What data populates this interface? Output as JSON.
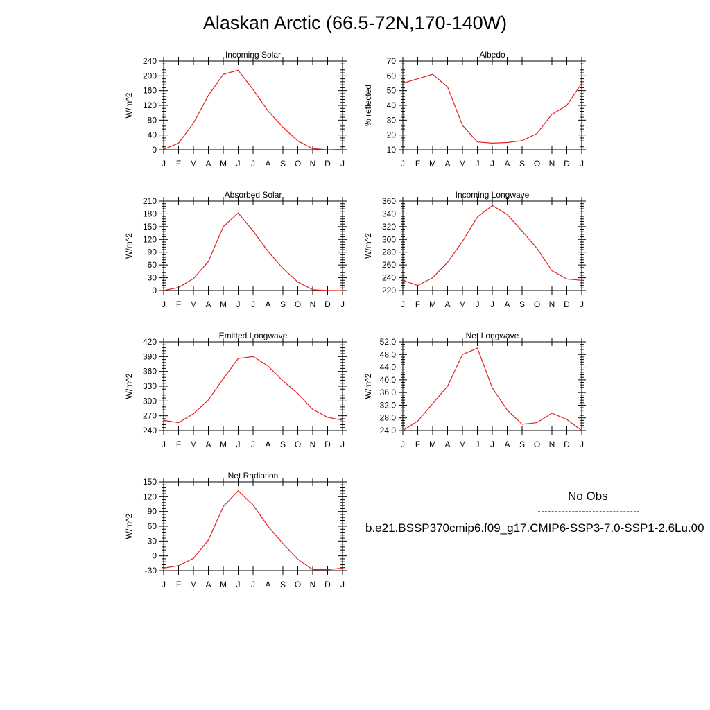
{
  "title": "Alaskan Arctic (66.5-72N,170-140W)",
  "legend": {
    "obs_label": "No Obs",
    "model_label": "b.e21.BSSP370cmip6.f09_g17.CMIP6-SSP3-7.0-SSP1-2.6Lu.00",
    "model_color": "#e02020",
    "obs_color": "#6a6adf"
  },
  "chart_data": [
    {
      "type": "line",
      "title": "Incoming Solar",
      "ylabel": "W/m^2",
      "categories": [
        "J",
        "F",
        "M",
        "A",
        "M",
        "J",
        "J",
        "A",
        "S",
        "O",
        "N",
        "D",
        "J"
      ],
      "ylim": [
        0,
        240
      ],
      "yticks": [
        "0",
        "40",
        "80",
        "120",
        "160",
        "200",
        "240"
      ],
      "values": [
        1,
        18,
        72,
        147,
        204,
        215,
        163,
        105,
        61,
        24,
        3,
        0,
        1
      ]
    },
    {
      "type": "line",
      "title": "Albedo",
      "ylabel": "% reflected",
      "categories": [
        "J",
        "F",
        "M",
        "A",
        "M",
        "J",
        "J",
        "A",
        "S",
        "O",
        "N",
        "D",
        "J"
      ],
      "ylim": [
        10,
        70
      ],
      "yticks": [
        "10",
        "20",
        "30",
        "40",
        "50",
        "60",
        "70"
      ],
      "values": [
        55,
        58,
        61,
        52.5,
        26.5,
        15.3,
        14.5,
        14.9,
        16.2,
        21,
        34,
        40,
        55
      ]
    },
    {
      "type": "line",
      "title": "Absorbed Solar",
      "ylabel": "W/m^2",
      "categories": [
        "J",
        "F",
        "M",
        "A",
        "M",
        "J",
        "J",
        "A",
        "S",
        "O",
        "N",
        "D",
        "J"
      ],
      "ylim": [
        0,
        210
      ],
      "yticks": [
        "0",
        "30",
        "60",
        "90",
        "120",
        "150",
        "180",
        "210"
      ],
      "values": [
        0,
        7,
        28,
        68,
        150,
        182,
        140,
        92,
        52,
        20,
        2,
        0,
        0
      ]
    },
    {
      "type": "line",
      "title": "Incoming Longwave",
      "ylabel": "W/m^2",
      "categories": [
        "J",
        "F",
        "M",
        "A",
        "M",
        "J",
        "J",
        "A",
        "S",
        "O",
        "N",
        "D",
        "J"
      ],
      "ylim": [
        220,
        360
      ],
      "yticks": [
        "220",
        "240",
        "260",
        "280",
        "300",
        "320",
        "340",
        "360"
      ],
      "values": [
        236,
        228,
        240,
        264,
        297,
        335,
        353,
        339,
        313,
        286,
        251,
        238,
        236
      ]
    },
    {
      "type": "line",
      "title": "Emitted Longwave",
      "ylabel": "W/m^2",
      "categories": [
        "J",
        "F",
        "M",
        "A",
        "M",
        "J",
        "J",
        "A",
        "S",
        "O",
        "N",
        "D",
        "J"
      ],
      "ylim": [
        240,
        420
      ],
      "yticks": [
        "240",
        "270",
        "300",
        "330",
        "360",
        "390",
        "420"
      ],
      "values": [
        261,
        256,
        274,
        302,
        345,
        386,
        390,
        371,
        341,
        315,
        283,
        267,
        261
      ]
    },
    {
      "type": "line",
      "title": "Net Longwave",
      "ylabel": "W/m^2",
      "categories": [
        "J",
        "F",
        "M",
        "A",
        "M",
        "J",
        "J",
        "A",
        "S",
        "O",
        "N",
        "D",
        "J"
      ],
      "ylim": [
        24,
        52
      ],
      "yticks": [
        "24.0",
        "28.0",
        "32.0",
        "36.0",
        "40.0",
        "44.0",
        "48.0",
        "52.0"
      ],
      "values": [
        24,
        27,
        32.5,
        38,
        48,
        50,
        37.5,
        30.5,
        26,
        26.5,
        29.5,
        27.5,
        24
      ]
    },
    {
      "type": "line",
      "title": "Net Radiation",
      "ylabel": "W/m^2",
      "categories": [
        "J",
        "F",
        "M",
        "A",
        "M",
        "J",
        "J",
        "A",
        "S",
        "O",
        "N",
        "D",
        "J"
      ],
      "ylim": [
        -30,
        150
      ],
      "yticks": [
        "-30",
        "0",
        "30",
        "60",
        "90",
        "120",
        "150"
      ],
      "values": [
        -25,
        -20,
        -5,
        32,
        100,
        132,
        103,
        60,
        25,
        -7,
        -28,
        -28,
        -25
      ]
    }
  ]
}
